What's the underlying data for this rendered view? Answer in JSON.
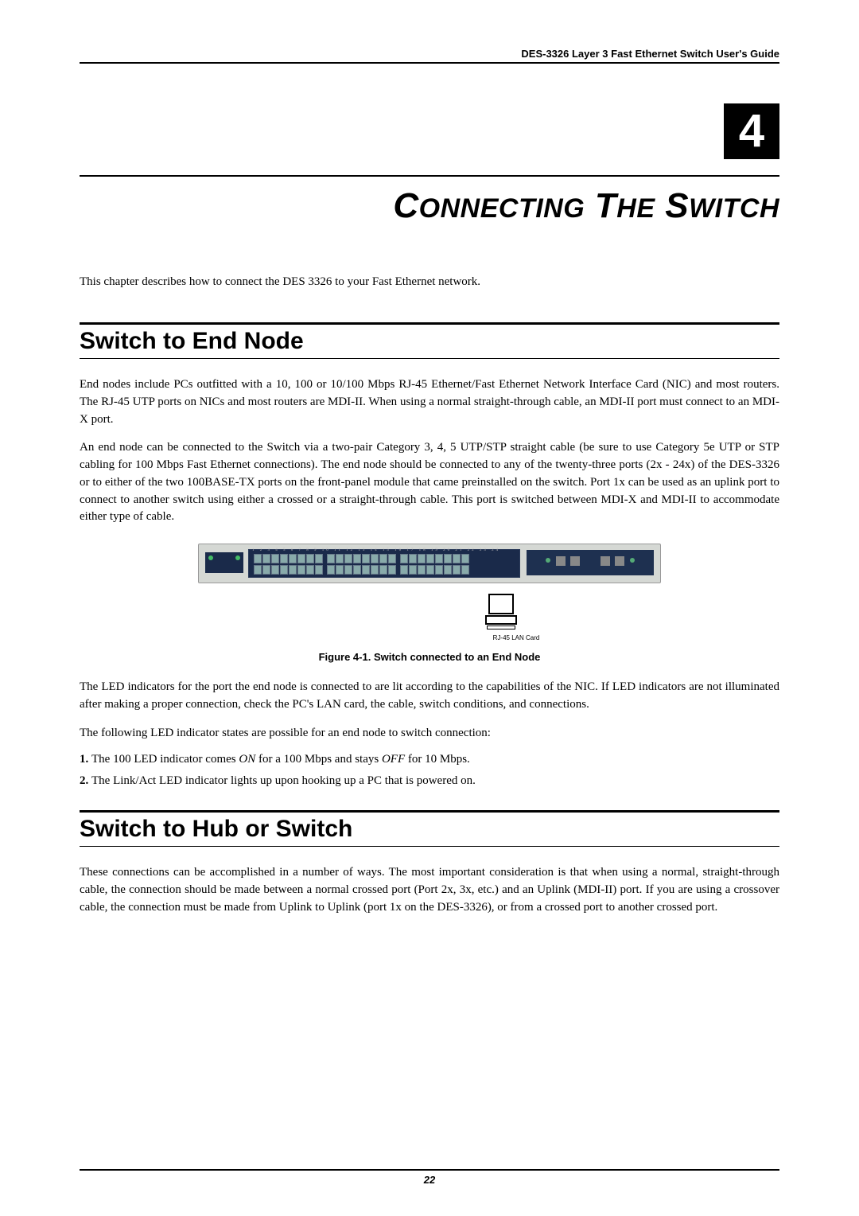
{
  "header": "DES-3326 Layer 3 Fast Ethernet Switch User's Guide",
  "chapter_number": "4",
  "chapter_title_html": "C<span class='tail'>ONNECTING</span> T<span class='tail'>HE</span> S<span class='tail'>WITCH</span>",
  "intro": "This chapter describes how to connect the DES 3326 to your Fast Ethernet network.",
  "section1": {
    "heading": "Switch to End Node",
    "p1": "End nodes include PCs outfitted with a 10, 100 or 10/100 Mbps RJ-45 Ethernet/Fast Ethernet Network Interface Card (NIC) and most routers. The RJ-45 UTP ports on NICs and most routers are MDI-II. When using a normal straight-through cable, an MDI-II port must connect to an MDI-X port.",
    "p2": "An end node can be connected to the Switch via a two-pair Category 3, 4, 5 UTP/STP straight cable (be sure to use Category 5e UTP or STP cabling for 100 Mbps Fast Ethernet connections). The end node should be connected to any of the twenty-three ports (2x - 24x) of the DES-3326 or to either of the two 100BASE-TX ports on the front-panel module that came preinstalled on the switch.  Port 1x can be used as an uplink port to connect to another switch using either a crossed or a straight-through cable. This port is switched between MDI-X and MDI-II to accommodate either type of cable.",
    "figure_caption": "Figure 4-1.  Switch connected to an End Node",
    "p3": "The LED indicators for the port the end node is connected to are lit according to the capabilities of the NIC. If LED indicators are not illuminated after making a proper connection, check the PC's LAN card, the cable, switch conditions, and connections.",
    "p4": "The following LED indicator states are possible for an end node to switch connection:",
    "li1_pre": "1. ",
    "li1": "The 100 LED indicator comes ",
    "li1_on": "ON",
    "li1_mid": " for a 100 Mbps and stays ",
    "li1_off": "OFF",
    "li1_end": " for 10 Mbps.",
    "li2_pre": "2. ",
    "li2": "The Link/Act LED indicator lights up upon hooking up a PC that is powered on."
  },
  "section2": {
    "heading": "Switch to Hub or Switch",
    "p1": "These connections can be accomplished in a number of ways. The most important consideration is that when using a normal, straight-through cable, the connection should be made between a normal crossed port (Port 2x, 3x, etc.) and an Uplink (MDI-II) port. If you are using a crossover cable, the connection must be made from Uplink to Uplink (port 1x on the DES-3326), or from a crossed port to another crossed port."
  },
  "figure_pc_label": "RJ-45 LAN Card",
  "page_number": "22",
  "colors": {
    "switch_body": "#d5d8d4",
    "switch_dark": "#1a2a4a",
    "module": "#1e3050"
  }
}
